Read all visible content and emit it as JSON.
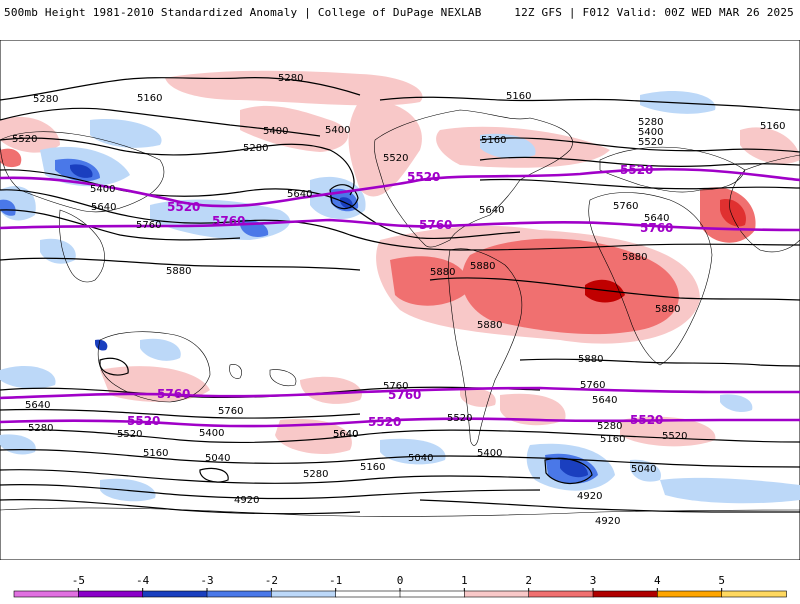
{
  "header": {
    "title": "500mb Height 1981-2010 Standardized Anomaly | College of DuPage NEXLAB",
    "run_info": "12Z GFS | F012 Valid: 00Z WED MAR 26 2025"
  },
  "map": {
    "projection": "cylindrical-global",
    "anomaly_colors": {
      "-5": "#e070e0",
      "-4": "#8b00c8",
      "-3": "#1a3fbf",
      "-2": "#4a78e8",
      "-1": "#bcd8f8",
      "0": "#ffffff",
      "1": "#f8c8c8",
      "2": "#f07070",
      "3": "#e03030",
      "4": "#b00000",
      "5": "#ffa500"
    },
    "contour_color": "#000000",
    "highlight_contour_color": "#a000c8",
    "height_labels": {
      "n1": "5280",
      "n2": "5160",
      "n3": "5280",
      "n4": "5160",
      "n5": "5400",
      "n6": "5280",
      "n7": "5400",
      "n8": "5520",
      "n9": "5520",
      "n10": "5400",
      "n11": "5640",
      "n12": "5760",
      "n13": "5880",
      "n14": "5640",
      "n15": "5160",
      "n16": "5280",
      "n17": "5400",
      "n18": "5520",
      "n19": "5160",
      "n20": "5760",
      "n21": "5640",
      "n22": "5880",
      "n23": "5880",
      "n24": "5880",
      "n25": "5880",
      "n26": "5880",
      "n27": "5880",
      "n28": "5640",
      "n29": "5640",
      "s1": "5760",
      "s2": "5640",
      "s3": "5280",
      "s4": "5520",
      "s5": "5160",
      "s6": "5040",
      "s7": "4920",
      "s8": "5760",
      "s9": "5400",
      "s10": "5640",
      "s11": "5280",
      "s12": "5160",
      "s13": "5040",
      "s14": "5400",
      "s15": "5520",
      "s16": "5760",
      "s17": "5640",
      "s18": "5280",
      "s19": "5160",
      "s20": "5040",
      "s21": "4920",
      "s22": "5520",
      "s23": "4920"
    },
    "highlight_labels": {
      "p1": "5520",
      "p2": "5760",
      "p3": "5520",
      "p4": "5520",
      "p5": "5760",
      "p6": "5760",
      "p7": "5760",
      "p8": "5760",
      "p9": "5520",
      "p10": "5520",
      "p11": "5520"
    }
  },
  "colorbar": {
    "ticks": [
      "-5",
      "-4",
      "-3",
      "-2",
      "-1",
      "0",
      "1",
      "2",
      "3",
      "4",
      "5"
    ],
    "colors": [
      "#e070e0",
      "#8b00c8",
      "#1a3fbf",
      "#4a78e8",
      "#bcd8f8",
      "#ffffff",
      "#ffffff",
      "#f8c8c8",
      "#f07070",
      "#b00000",
      "#ffa500",
      "#ffd860"
    ]
  }
}
